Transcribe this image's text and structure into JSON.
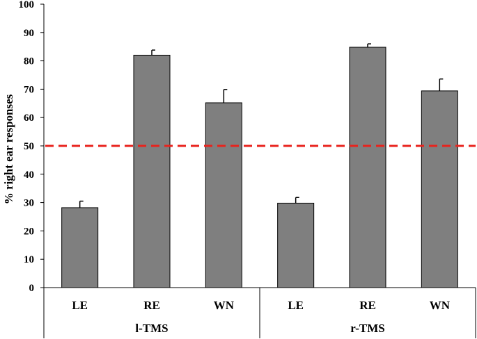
{
  "chart_data": {
    "type": "bar",
    "ylabel": "% right ear responses",
    "ylim": [
      0,
      100
    ],
    "yticks": [
      0,
      10,
      20,
      30,
      40,
      50,
      60,
      70,
      80,
      90,
      100
    ],
    "groups": [
      {
        "label": "l-TMS",
        "categories": [
          "LE",
          "RE",
          "WN"
        ],
        "values": [
          28.2,
          82.0,
          65.2
        ],
        "errors": [
          2.3,
          1.8,
          4.7
        ]
      },
      {
        "label": "r-TMS",
        "categories": [
          "LE",
          "RE",
          "WN"
        ],
        "values": [
          29.8,
          84.8,
          69.4
        ],
        "errors": [
          2.0,
          1.2,
          4.2
        ]
      }
    ],
    "reference_line": {
      "value": 50,
      "style": "dashed",
      "color": "#e8231d"
    },
    "bar_color": "#7f7f7f"
  }
}
